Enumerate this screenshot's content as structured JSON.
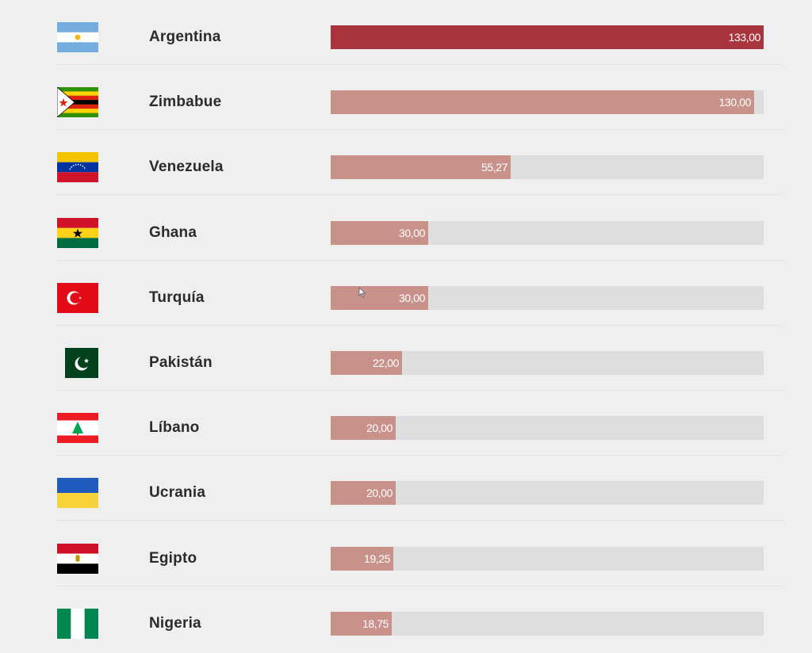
{
  "chart_data": {
    "type": "bar",
    "orientation": "horizontal",
    "categories": [
      "Argentina",
      "Zimbabue",
      "Venezuela",
      "Ghana",
      "Turquía",
      "Pakistán",
      "Líbano",
      "Ucrania",
      "Egipto",
      "Nigeria"
    ],
    "values": [
      133.0,
      130.0,
      55.27,
      30.0,
      30.0,
      22.0,
      20.0,
      20.0,
      19.25,
      18.75
    ],
    "value_labels": [
      "133,00",
      "130,00",
      "55,27",
      "30,00",
      "30,00",
      "22,00",
      "20,00",
      "20,00",
      "19,25",
      "18,75"
    ],
    "flags": [
      "argentina-flag-icon",
      "zimbabwe-flag-icon",
      "venezuela-flag-icon",
      "ghana-flag-icon",
      "turkey-flag-icon",
      "pakistan-flag-icon",
      "lebanon-flag-icon",
      "ukraine-flag-icon",
      "egypt-flag-icon",
      "nigeria-flag-icon"
    ],
    "highlighted": "Argentina",
    "xlim": [
      0,
      133
    ],
    "grid": false,
    "colors": {
      "highlight": "#a9343d",
      "bar": "#c8928b",
      "track": "#dedede",
      "background": "#efefef"
    }
  }
}
